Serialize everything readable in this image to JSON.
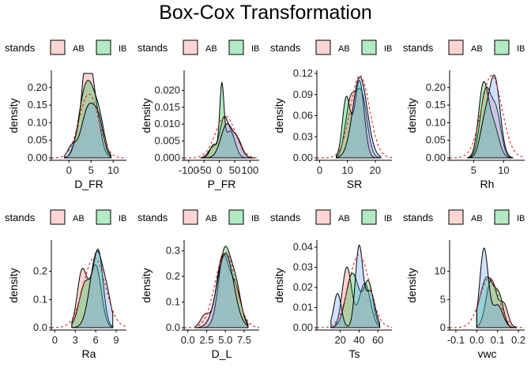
{
  "title": "Box-Cox Transformation",
  "legend": {
    "title": "stands",
    "entries": [
      {
        "label": "AB",
        "color": "#F8766D"
      },
      {
        "label": "IB",
        "color": "#00BA38"
      },
      {
        "label": "",
        "color": "#619CFF"
      }
    ]
  },
  "chart_data": [
    {
      "type": "area",
      "xlabel": "D_FR",
      "ylabel": "density",
      "x_ticks": [
        "0",
        "5",
        "10"
      ],
      "y_ticks": [
        "0.00",
        "0.05",
        "0.10",
        "0.15",
        "0.20"
      ],
      "xlim": [
        -4,
        13
      ],
      "ylim": [
        0,
        0.24
      ],
      "data_range": [
        -1,
        9.5
      ],
      "normal_overlay": {
        "mean": 4.5,
        "sd": 2.2
      },
      "series": [
        {
          "peaks": [
            [
              3.9,
              0.235,
              1.0
            ],
            [
              5.6,
              0.16,
              1.3
            ],
            [
              1.8,
              0.05,
              1.0
            ]
          ]
        },
        {
          "peaks": [
            [
              3.0,
              0.1,
              1.3
            ],
            [
              4.9,
              0.17,
              1.5
            ],
            [
              7.1,
              0.07,
              1.1
            ]
          ]
        },
        {
          "peaks": [
            [
              4.6,
              0.15,
              1.7
            ],
            [
              6.9,
              0.06,
              1.0
            ],
            [
              0.6,
              0.03,
              0.9
            ]
          ]
        }
      ]
    },
    {
      "type": "area",
      "xlabel": "P_FR",
      "ylabel": "density",
      "x_ticks": [
        "-100",
        "-50",
        "0",
        "50",
        "100"
      ],
      "y_ticks": [
        "0.000",
        "0.005",
        "0.010",
        "0.015",
        "0.020"
      ],
      "xlim": [
        -115,
        130
      ],
      "ylim": [
        0,
        0.025
      ],
      "data_range": [
        -60,
        115
      ],
      "normal_overlay": {
        "mean": 20,
        "sd": 32
      },
      "series": [
        {
          "peaks": [
            [
              15,
              0.011,
              14
            ],
            [
              50,
              0.007,
              18
            ],
            [
              -22,
              0.003,
              14
            ]
          ]
        },
        {
          "peaks": [
            [
              8,
              0.02,
              7
            ],
            [
              35,
              0.008,
              16
            ],
            [
              -18,
              0.004,
              12
            ]
          ]
        },
        {
          "peaks": [
            [
              25,
              0.01,
              20
            ],
            [
              62,
              0.004,
              14
            ]
          ]
        }
      ]
    },
    {
      "type": "area",
      "xlabel": "SR",
      "ylabel": "density",
      "x_ticks": [
        "0",
        "10",
        "20"
      ],
      "y_ticks": [
        "0.00",
        "0.03",
        "0.06",
        "0.09",
        "0.12"
      ],
      "xlim": [
        -1,
        26
      ],
      "ylim": [
        0,
        0.12
      ],
      "data_range": [
        6,
        22
      ],
      "normal_overlay": {
        "mean": 14.5,
        "sd": 3.4
      },
      "series": [
        {
          "peaks": [
            [
              11,
              0.075,
              1.8
            ],
            [
              15,
              0.09,
              2.0
            ]
          ]
        },
        {
          "peaks": [
            [
              9.6,
              0.085,
              1.4
            ],
            [
              14.3,
              0.11,
              1.7
            ]
          ]
        },
        {
          "peaks": [
            [
              14.5,
              0.115,
              2.6
            ]
          ]
        }
      ]
    },
    {
      "type": "area",
      "xlabel": "Rh",
      "ylabel": "density",
      "x_ticks": [
        "5",
        "10"
      ],
      "y_ticks": [
        "0.00",
        "0.05",
        "0.10",
        "0.15",
        "0.20"
      ],
      "xlim": [
        1,
        13.5
      ],
      "ylim": [
        0,
        0.24
      ],
      "data_range": [
        4,
        11.5
      ],
      "normal_overlay": {
        "mean": 8,
        "sd": 1.7
      },
      "series": [
        {
          "peaks": [
            [
              7.0,
              0.19,
              0.9
            ],
            [
              8.8,
              0.12,
              0.8
            ]
          ]
        },
        {
          "peaks": [
            [
              6.6,
              0.2,
              0.8
            ],
            [
              8.3,
              0.09,
              0.9
            ]
          ]
        },
        {
          "peaks": [
            [
              8.5,
              0.225,
              0.9
            ],
            [
              6.8,
              0.09,
              0.8
            ]
          ]
        }
      ]
    },
    {
      "type": "area",
      "xlabel": "Ra",
      "ylabel": "density",
      "x_ticks": [
        "0",
        "3",
        "6",
        "9"
      ],
      "y_ticks": [
        "0.0",
        "0.1",
        "0.2"
      ],
      "xlim": [
        -0.5,
        10.5
      ],
      "ylim": [
        0,
        0.3
      ],
      "data_range": [
        2.5,
        8.5
      ],
      "normal_overlay": {
        "mean": 5.8,
        "sd": 1.6
      },
      "series": [
        {
          "peaks": [
            [
              4.0,
              0.2,
              0.7
            ],
            [
              6.0,
              0.22,
              0.8
            ]
          ]
        },
        {
          "peaks": [
            [
              4.5,
              0.16,
              0.9
            ],
            [
              6.4,
              0.26,
              0.7
            ]
          ]
        },
        {
          "peaks": [
            [
              6.2,
              0.27,
              1.0
            ],
            [
              7.8,
              0.06,
              0.6
            ]
          ]
        }
      ]
    },
    {
      "type": "area",
      "xlabel": "D_L",
      "ylabel": "density",
      "x_ticks": [
        "0.0",
        "2.5",
        "5.0",
        "7.5"
      ],
      "y_ticks": [
        "0.0",
        "0.1",
        "0.2",
        "0.3"
      ],
      "xlim": [
        -0.5,
        9.5
      ],
      "ylim": [
        0,
        0.33
      ],
      "data_range": [
        1,
        8
      ],
      "normal_overlay": {
        "mean": 5.0,
        "sd": 1.35
      },
      "series": [
        {
          "peaks": [
            [
              4.6,
              0.27,
              0.8
            ],
            [
              2.3,
              0.05,
              0.6
            ],
            [
              6.3,
              0.15,
              0.8
            ]
          ]
        },
        {
          "peaks": [
            [
              4.9,
              0.3,
              0.8
            ],
            [
              6.4,
              0.15,
              0.7
            ]
          ]
        },
        {
          "peaks": [
            [
              5.0,
              0.29,
              1.1
            ]
          ]
        }
      ]
    },
    {
      "type": "area",
      "xlabel": "Ts",
      "ylabel": "density",
      "x_ticks": [
        "20",
        "40",
        "60"
      ],
      "y_ticks": [
        "0.00",
        "0.01",
        "0.02",
        "0.03",
        "0.04"
      ],
      "xlim": [
        -5,
        75
      ],
      "ylim": [
        0,
        0.042
      ],
      "data_range": [
        10,
        62
      ],
      "normal_overlay": {
        "mean": 40,
        "sd": 11
      },
      "series": [
        {
          "peaks": [
            [
              27,
              0.03,
              5
            ],
            [
              46,
              0.022,
              6
            ]
          ]
        },
        {
          "peaks": [
            [
              33,
              0.027,
              7
            ],
            [
              50,
              0.022,
              5
            ]
          ]
        },
        {
          "peaks": [
            [
              40,
              0.04,
              4
            ],
            [
              17,
              0.017,
              4
            ],
            [
              52,
              0.018,
              5
            ]
          ]
        }
      ]
    },
    {
      "type": "area",
      "xlabel": "vwc",
      "ylabel": "density",
      "x_ticks": [
        "-0.1",
        "0.0",
        "0.1",
        "0.2"
      ],
      "y_ticks": [
        "0",
        "5",
        "10"
      ],
      "xlim": [
        -0.13,
        0.23
      ],
      "ylim": [
        0,
        15
      ],
      "data_range": [
        0,
        0.19
      ],
      "normal_overlay": {
        "mean": 0.06,
        "sd": 0.045
      },
      "series": [
        {
          "peaks": [
            [
              0.07,
              8.5,
              0.025
            ],
            [
              0.13,
              4.0,
              0.02
            ]
          ]
        },
        {
          "peaks": [
            [
              0.05,
              9.0,
              0.035
            ],
            [
              0.11,
              4.0,
              0.02
            ]
          ]
        },
        {
          "peaks": [
            [
              0.035,
              14.0,
              0.02
            ],
            [
              0.1,
              4.0,
              0.025
            ]
          ]
        }
      ]
    }
  ]
}
